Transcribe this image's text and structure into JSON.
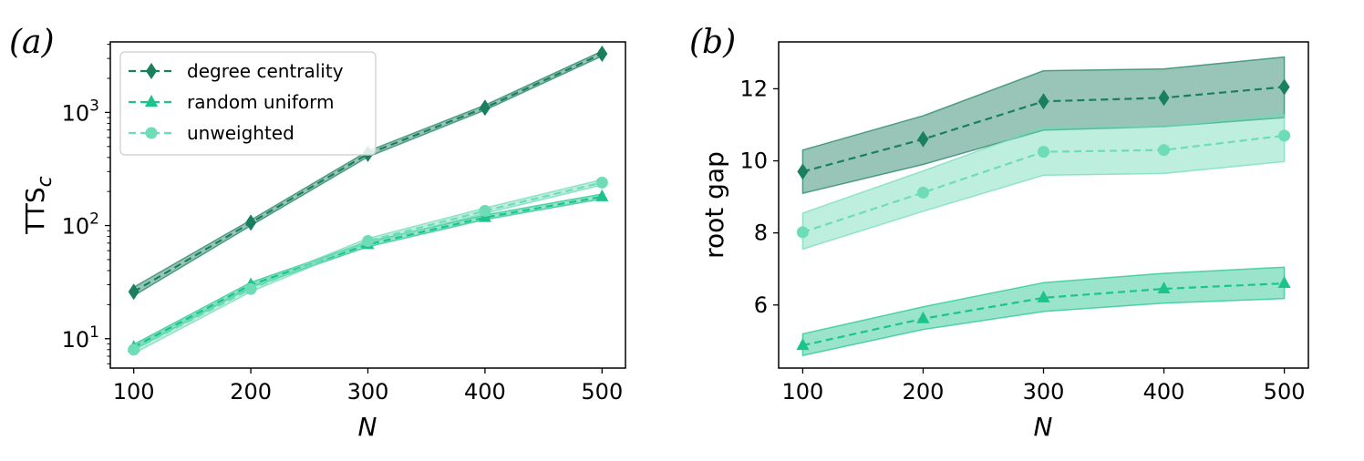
{
  "chart_data": [
    {
      "type": "line",
      "panel_label": "(a)",
      "xlabel": "N",
      "ylabel": "TTS",
      "ylabel_sub": "c",
      "yscale": "log",
      "xlim": [
        80,
        520
      ],
      "ylim": [
        5.5,
        4200
      ],
      "x": [
        100,
        200,
        300,
        400,
        500
      ],
      "x_ticks": [
        "100",
        "200",
        "300",
        "400",
        "500"
      ],
      "y_ticks": [
        {
          "value": 10,
          "base": "10",
          "exp": "1"
        },
        {
          "value": 100,
          "base": "10",
          "exp": "2"
        },
        {
          "value": 1000,
          "base": "10",
          "exp": "3"
        }
      ],
      "legend": "top-left",
      "series": [
        {
          "name": "degree centrality",
          "color": "#1a7f5f",
          "marker": "diamond",
          "values": [
            26,
            106,
            430,
            1100,
            3300
          ],
          "lower": [
            24,
            100,
            405,
            1050,
            3150
          ],
          "upper": [
            28.5,
            112,
            455,
            1160,
            3480
          ]
        },
        {
          "name": "random uniform",
          "color": "#1cc48a",
          "marker": "triangle",
          "values": [
            8.4,
            30,
            68,
            118,
            180
          ],
          "lower": [
            8.0,
            28.5,
            65,
            113,
            172
          ],
          "upper": [
            8.9,
            31.5,
            72,
            124,
            190
          ]
        },
        {
          "name": "unweighted",
          "color": "#6edcb6",
          "marker": "circle",
          "values": [
            8.0,
            27.5,
            73,
            135,
            240
          ],
          "lower": [
            7.4,
            26,
            70,
            128,
            228
          ],
          "upper": [
            8.6,
            29.5,
            77,
            143,
            255
          ]
        }
      ]
    },
    {
      "type": "line",
      "panel_label": "(b)",
      "xlabel": "N",
      "ylabel": "root gap",
      "yscale": "linear",
      "xlim": [
        80,
        520
      ],
      "ylim": [
        4.25,
        13.3
      ],
      "x": [
        100,
        200,
        300,
        400,
        500
      ],
      "x_ticks": [
        "100",
        "200",
        "300",
        "400",
        "500"
      ],
      "y_ticks": [
        {
          "value": 6,
          "label": "6"
        },
        {
          "value": 8,
          "label": "8"
        },
        {
          "value": 10,
          "label": "10"
        },
        {
          "value": 12,
          "label": "12"
        }
      ],
      "series": [
        {
          "name": "degree centrality",
          "color": "#1a7f5f",
          "marker": "diamond",
          "values": [
            9.7,
            10.6,
            11.65,
            11.75,
            12.05
          ],
          "lower": [
            9.1,
            9.9,
            10.85,
            10.95,
            11.2
          ],
          "upper": [
            10.3,
            11.25,
            12.5,
            12.55,
            12.88
          ]
        },
        {
          "name": "unweighted",
          "color": "#6edcb6",
          "marker": "circle",
          "values": [
            8.02,
            9.12,
            10.25,
            10.3,
            10.7
          ],
          "lower": [
            7.55,
            8.6,
            9.6,
            9.65,
            9.98
          ],
          "upper": [
            8.55,
            9.72,
            10.93,
            10.95,
            11.28
          ]
        },
        {
          "name": "random uniform",
          "color": "#1cc48a",
          "marker": "triangle",
          "values": [
            4.88,
            5.62,
            6.2,
            6.45,
            6.6
          ],
          "lower": [
            4.6,
            5.32,
            5.82,
            6.05,
            6.18
          ],
          "upper": [
            5.2,
            5.95,
            6.62,
            6.88,
            7.05
          ]
        }
      ]
    }
  ]
}
